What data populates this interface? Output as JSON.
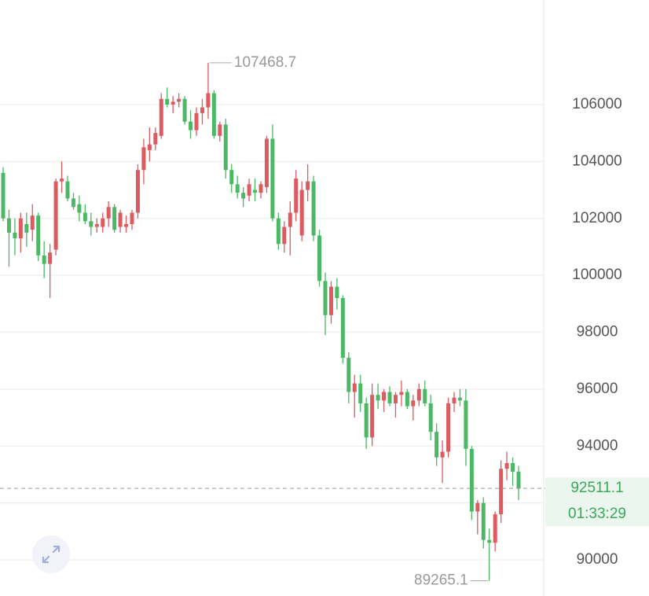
{
  "chart_data": {
    "type": "candlestick",
    "ohlc": [
      [
        103600,
        103800,
        101900,
        102000
      ],
      [
        102000,
        102300,
        100300,
        101500
      ],
      [
        101500,
        102000,
        100700,
        101300
      ],
      [
        101300,
        102200,
        100800,
        102000
      ],
      [
        101800,
        102200,
        101000,
        101500
      ],
      [
        101600,
        102500,
        101200,
        102100
      ],
      [
        102100,
        102200,
        100500,
        100700
      ],
      [
        100700,
        101200,
        99900,
        100400
      ],
      [
        100400,
        101100,
        99200,
        100800
      ],
      [
        100900,
        103400,
        100700,
        103300
      ],
      [
        103300,
        104000,
        102900,
        103400
      ],
      [
        103300,
        103500,
        102600,
        102700
      ],
      [
        102700,
        102900,
        102300,
        102400
      ],
      [
        102500,
        102800,
        101900,
        102200
      ],
      [
        102200,
        102500,
        101800,
        101900
      ],
      [
        101900,
        102200,
        101400,
        101700
      ],
      [
        101700,
        102000,
        101500,
        101800
      ],
      [
        101700,
        102200,
        101500,
        102000
      ],
      [
        102000,
        102600,
        101700,
        102400
      ],
      [
        102400,
        102500,
        101500,
        101600
      ],
      [
        101700,
        102300,
        101500,
        102200
      ],
      [
        101700,
        102100,
        101500,
        101800
      ],
      [
        101800,
        102300,
        101600,
        102200
      ],
      [
        102200,
        103900,
        102000,
        103700
      ],
      [
        103700,
        104800,
        103200,
        104500
      ],
      [
        104400,
        105200,
        104000,
        104600
      ],
      [
        104600,
        105200,
        104400,
        105000
      ],
      [
        104900,
        106400,
        104800,
        106200
      ],
      [
        106200,
        106600,
        105900,
        106000
      ],
      [
        106000,
        106300,
        105700,
        106100
      ],
      [
        106100,
        106400,
        105900,
        106200
      ],
      [
        106200,
        106300,
        105300,
        105400
      ],
      [
        105400,
        105800,
        104800,
        105100
      ],
      [
        105100,
        105900,
        104900,
        105700
      ],
      [
        105700,
        106200,
        105300,
        105900
      ],
      [
        105900,
        107468.7,
        105500,
        106400
      ],
      [
        106400,
        106500,
        104800,
        104900
      ],
      [
        104900,
        105400,
        104700,
        105300
      ],
      [
        105300,
        105500,
        103400,
        103700
      ],
      [
        103700,
        103900,
        102900,
        103200
      ],
      [
        103200,
        103500,
        102700,
        102900
      ],
      [
        102900,
        103100,
        102400,
        102700
      ],
      [
        102800,
        103400,
        102600,
        103200
      ],
      [
        103000,
        103400,
        102600,
        102900
      ],
      [
        102900,
        103300,
        102700,
        103200
      ],
      [
        103100,
        104900,
        102900,
        104800
      ],
      [
        104800,
        105300,
        101900,
        102000
      ],
      [
        102000,
        102200,
        100900,
        101100
      ],
      [
        101100,
        101900,
        100800,
        101700
      ],
      [
        101700,
        102600,
        100700,
        102200
      ],
      [
        102200,
        103700,
        101900,
        103400
      ],
      [
        101400,
        103300,
        101200,
        103000
      ],
      [
        103000,
        103900,
        102600,
        103300
      ],
      [
        103300,
        103500,
        101200,
        101400
      ],
      [
        101400,
        101600,
        99600,
        99800
      ],
      [
        99800,
        100100,
        97900,
        98600
      ],
      [
        98600,
        99800,
        98300,
        99600
      ],
      [
        99600,
        99900,
        98800,
        99200
      ],
      [
        99200,
        99300,
        96900,
        97100
      ],
      [
        97100,
        97300,
        95500,
        95900
      ],
      [
        95900,
        96500,
        95000,
        96200
      ],
      [
        96200,
        96500,
        95200,
        95500
      ],
      [
        95500,
        95700,
        93900,
        94300
      ],
      [
        94300,
        96200,
        94000,
        95800
      ],
      [
        95800,
        96200,
        95300,
        95600
      ],
      [
        95600,
        96000,
        95200,
        95900
      ],
      [
        95900,
        96100,
        95400,
        95500
      ],
      [
        95500,
        95900,
        95000,
        95800
      ],
      [
        95800,
        96300,
        95400,
        95900
      ],
      [
        95900,
        96000,
        95300,
        95400
      ],
      [
        95400,
        95800,
        94900,
        95600
      ],
      [
        95600,
        96200,
        95400,
        96000
      ],
      [
        96000,
        96300,
        95400,
        95500
      ],
      [
        95500,
        95800,
        94200,
        94500
      ],
      [
        94500,
        94800,
        93300,
        93600
      ],
      [
        93600,
        94200,
        92700,
        93800
      ],
      [
        93800,
        95700,
        93600,
        95500
      ],
      [
        95500,
        95900,
        95200,
        95700
      ],
      [
        95700,
        96000,
        95400,
        95600
      ],
      [
        95600,
        96000,
        93300,
        93900
      ],
      [
        93900,
        94000,
        91400,
        91700
      ],
      [
        91700,
        92100,
        90900,
        92000
      ],
      [
        92000,
        92200,
        90400,
        90700
      ],
      [
        90700,
        91100,
        89265.1,
        90600
      ],
      [
        90600,
        91700,
        90300,
        91600
      ],
      [
        91600,
        93500,
        91300,
        93200
      ],
      [
        93200,
        93800,
        92800,
        93400
      ],
      [
        93400,
        93600,
        92600,
        93100
      ],
      [
        93100,
        93300,
        92100,
        92511.1
      ]
    ],
    "up_color": "#dd5a5f",
    "down_color": "#4cb866",
    "ylim": [
      88730,
      109675
    ],
    "yticks": [
      90000,
      92000,
      94000,
      96000,
      98000,
      100000,
      102000,
      104000,
      106000
    ],
    "grid": true,
    "high_marker": 107468.7,
    "low_marker": 89265.1,
    "last_price": 92511.1,
    "countdown": "01:33:29"
  }
}
